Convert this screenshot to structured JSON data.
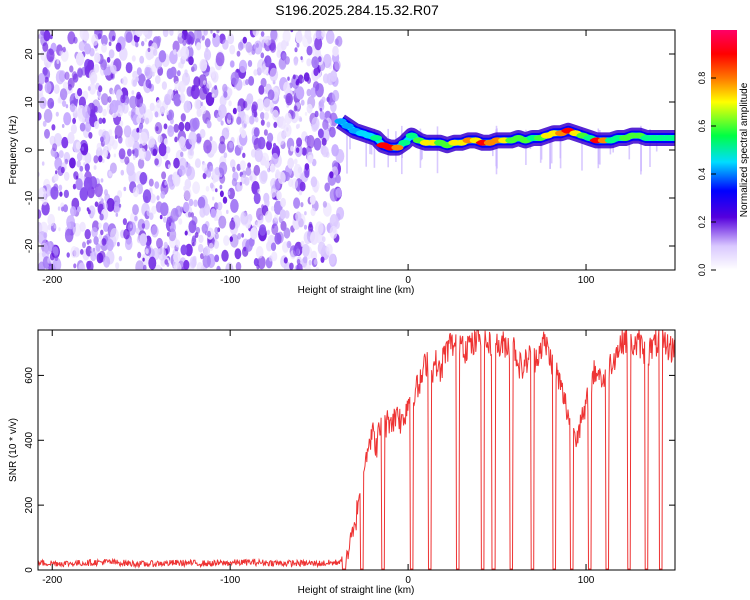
{
  "figure_title": "S196.2025.284.15.32.R07",
  "chart_data": [
    {
      "type": "heatmap",
      "title": "S196.2025.284.15.32.R07",
      "xlabel": "Height of straight line (km)",
      "ylabel": "Frequency (Hz)",
      "xlim": [
        -208,
        150
      ],
      "ylim": [
        -25,
        25
      ],
      "x_ticks": [
        -200,
        -100,
        0,
        100
      ],
      "x_tick_labels": [
        "-200",
        "-100",
        "0",
        "100"
      ],
      "y_ticks": [
        -20,
        -10,
        0,
        10,
        20
      ],
      "y_tick_labels": [
        "-20",
        "-10",
        "0",
        "10",
        "20"
      ],
      "noise_region_x": [
        -208,
        -38
      ],
      "signal_track": {
        "description": "dominant spectral line vs height",
        "x": [
          -38,
          -34,
          -30,
          -26,
          -22,
          -18,
          -14,
          -10,
          -6,
          -2,
          2,
          6,
          10,
          14,
          18,
          22,
          26,
          30,
          34,
          38,
          42,
          46,
          50,
          54,
          58,
          62,
          66,
          70,
          74,
          78,
          82,
          86,
          90,
          94,
          98,
          102,
          106,
          110,
          114,
          118,
          122,
          126,
          130,
          134,
          138,
          142,
          146,
          150
        ],
        "y": [
          6,
          5,
          4,
          3.5,
          3,
          2.5,
          1,
          0.5,
          0.5,
          1.5,
          3,
          2,
          1.5,
          1.5,
          1.5,
          1,
          1.5,
          1.5,
          2,
          2,
          1.5,
          1.5,
          2,
          2,
          2,
          2.5,
          2,
          2.5,
          2.5,
          3,
          3.5,
          3.5,
          4,
          3.5,
          3,
          2.5,
          2,
          2,
          2,
          2.5,
          2.5,
          3,
          3,
          2.5,
          2.5,
          2.5,
          2.5,
          2.5
        ],
        "amplitude": [
          0.3,
          0.35,
          0.4,
          0.45,
          0.5,
          0.55,
          0.95,
          0.95,
          0.9,
          0.6,
          0.6,
          0.7,
          0.75,
          0.8,
          0.65,
          0.7,
          0.75,
          0.8,
          0.85,
          0.8,
          0.95,
          0.9,
          0.85,
          0.75,
          0.7,
          0.7,
          0.65,
          0.6,
          0.7,
          0.75,
          0.8,
          0.9,
          0.95,
          0.8,
          0.7,
          0.6,
          0.95,
          0.9,
          0.6,
          0.6,
          0.65,
          0.7,
          0.65,
          0.6,
          0.55,
          0.55,
          0.55,
          0.55
        ]
      },
      "colorbar": {
        "label": "Normalized spectral amplitude",
        "range": [
          0,
          1
        ],
        "ticks": [
          0.0,
          0.2,
          0.4,
          0.6,
          0.8
        ],
        "tick_labels": [
          "0.0",
          "0.2",
          "0.4",
          "0.6",
          "0.8"
        ],
        "colors": [
          "#ffffff",
          "#5500dd",
          "#0000ff",
          "#00ddff",
          "#00ff44",
          "#ffff00",
          "#ff6600",
          "#ff0000",
          "#ff0066"
        ]
      }
    },
    {
      "type": "line",
      "xlabel": "Height of straight line (km)",
      "ylabel": "SNR (10 * v/v)",
      "xlim": [
        -208,
        150
      ],
      "ylim": [
        0,
        740
      ],
      "x_ticks": [
        -200,
        -100,
        0,
        100
      ],
      "x_tick_labels": [
        "-200",
        "-100",
        "0",
        "100"
      ],
      "y_ticks": [
        0,
        200,
        400,
        600
      ],
      "y_tick_labels": [
        "0",
        "200",
        "400",
        "600"
      ],
      "series": [
        {
          "name": "SNR",
          "color": "#ee3333",
          "x": [
            -208,
            -190,
            -170,
            -150,
            -130,
            -110,
            -90,
            -70,
            -50,
            -40,
            -35,
            -30,
            -28,
            -26,
            -24,
            -22,
            -20,
            -18,
            -16,
            -14,
            -12,
            -10,
            -8,
            -6,
            -4,
            -2,
            0,
            2,
            4,
            6,
            8,
            10,
            12,
            14,
            16,
            18,
            20,
            22,
            24,
            26,
            28,
            30,
            32,
            34,
            36,
            38,
            40,
            42,
            44,
            46,
            48,
            50,
            52,
            54,
            56,
            58,
            60,
            62,
            64,
            66,
            68,
            70,
            72,
            74,
            76,
            78,
            80,
            82,
            84,
            86,
            88,
            90,
            92,
            94,
            96,
            98,
            100,
            102,
            104,
            106,
            108,
            110,
            112,
            114,
            116,
            118,
            120,
            122,
            124,
            126,
            128,
            130,
            132,
            134,
            136,
            138,
            140,
            142,
            144,
            146,
            148,
            150
          ],
          "y": [
            22,
            20,
            25,
            18,
            22,
            20,
            24,
            21,
            20,
            23,
            40,
            120,
            220,
            300,
            360,
            400,
            420,
            380,
            430,
            440,
            450,
            470,
            460,
            500,
            450,
            480,
            520,
            540,
            560,
            560,
            600,
            640,
            650,
            620,
            640,
            600,
            660,
            680,
            700,
            690,
            700,
            720,
            680,
            700,
            690,
            700,
            720,
            710,
            700,
            690,
            720,
            700,
            680,
            700,
            690,
            700,
            680,
            640,
            620,
            640,
            660,
            640,
            660,
            680,
            700,
            690,
            650,
            640,
            600,
            560,
            520,
            480,
            440,
            420,
            440,
            460,
            500,
            560,
            600,
            620,
            600,
            580,
            620,
            640,
            660,
            680,
            700,
            720,
            680,
            700,
            690,
            700,
            680,
            660,
            680,
            690,
            700,
            710,
            700,
            690,
            680,
            690
          ]
        }
      ],
      "dropouts_x": [
        -36,
        -26,
        -14,
        2,
        12,
        28,
        42,
        48,
        58,
        70,
        82,
        92,
        102,
        112,
        124,
        134,
        142
      ]
    }
  ]
}
